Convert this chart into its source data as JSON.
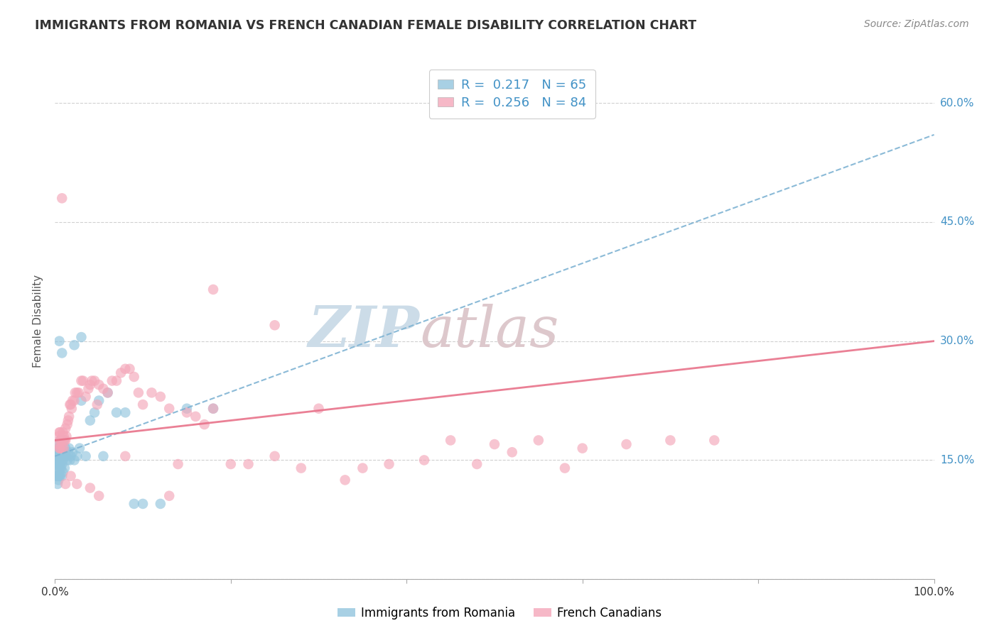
{
  "title": "IMMIGRANTS FROM ROMANIA VS FRENCH CANADIAN FEMALE DISABILITY CORRELATION CHART",
  "source": "Source: ZipAtlas.com",
  "ylabel": "Female Disability",
  "color_blue": "#92c5de",
  "color_pink": "#f4a7b9",
  "line_blue": "#7fb3d3",
  "line_pink": "#e8728a",
  "yticks": [
    0.0,
    0.15,
    0.3,
    0.45,
    0.6
  ],
  "ytick_labels": [
    "",
    "15.0%",
    "30.0%",
    "45.0%",
    "60.0%"
  ],
  "xlim": [
    0.0,
    1.0
  ],
  "ylim": [
    0.0,
    0.65
  ],
  "blue_points_x": [
    0.002,
    0.002,
    0.002,
    0.003,
    0.003,
    0.003,
    0.003,
    0.003,
    0.004,
    0.004,
    0.004,
    0.004,
    0.004,
    0.005,
    0.005,
    0.005,
    0.005,
    0.005,
    0.006,
    0.006,
    0.006,
    0.006,
    0.006,
    0.007,
    0.007,
    0.007,
    0.008,
    0.008,
    0.008,
    0.009,
    0.009,
    0.009,
    0.01,
    0.01,
    0.011,
    0.011,
    0.012,
    0.013,
    0.014,
    0.015,
    0.016,
    0.017,
    0.018,
    0.02,
    0.022,
    0.025,
    0.028,
    0.03,
    0.035,
    0.04,
    0.045,
    0.05,
    0.055,
    0.06,
    0.07,
    0.08,
    0.09,
    0.1,
    0.12,
    0.15,
    0.18,
    0.03,
    0.022,
    0.008,
    0.005
  ],
  "blue_points_y": [
    0.155,
    0.145,
    0.13,
    0.16,
    0.15,
    0.14,
    0.13,
    0.12,
    0.165,
    0.155,
    0.145,
    0.135,
    0.125,
    0.17,
    0.16,
    0.15,
    0.14,
    0.13,
    0.175,
    0.165,
    0.155,
    0.145,
    0.13,
    0.165,
    0.155,
    0.14,
    0.155,
    0.145,
    0.13,
    0.16,
    0.15,
    0.135,
    0.175,
    0.155,
    0.155,
    0.14,
    0.165,
    0.155,
    0.15,
    0.16,
    0.165,
    0.15,
    0.155,
    0.16,
    0.15,
    0.155,
    0.165,
    0.225,
    0.155,
    0.2,
    0.21,
    0.225,
    0.155,
    0.235,
    0.21,
    0.21,
    0.095,
    0.095,
    0.095,
    0.215,
    0.215,
    0.305,
    0.295,
    0.285,
    0.3
  ],
  "pink_points_x": [
    0.003,
    0.004,
    0.005,
    0.005,
    0.006,
    0.006,
    0.006,
    0.007,
    0.008,
    0.008,
    0.009,
    0.01,
    0.01,
    0.011,
    0.012,
    0.012,
    0.013,
    0.014,
    0.015,
    0.016,
    0.017,
    0.018,
    0.019,
    0.02,
    0.022,
    0.023,
    0.025,
    0.027,
    0.03,
    0.032,
    0.035,
    0.038,
    0.04,
    0.042,
    0.045,
    0.048,
    0.05,
    0.055,
    0.06,
    0.065,
    0.07,
    0.075,
    0.08,
    0.085,
    0.09,
    0.095,
    0.1,
    0.11,
    0.12,
    0.13,
    0.14,
    0.15,
    0.16,
    0.17,
    0.18,
    0.2,
    0.22,
    0.25,
    0.28,
    0.3,
    0.33,
    0.35,
    0.38,
    0.42,
    0.45,
    0.48,
    0.5,
    0.52,
    0.55,
    0.58,
    0.6,
    0.65,
    0.7,
    0.75,
    0.18,
    0.25,
    0.13,
    0.08,
    0.05,
    0.04,
    0.025,
    0.018,
    0.012,
    0.008
  ],
  "pink_points_y": [
    0.17,
    0.18,
    0.165,
    0.185,
    0.175,
    0.165,
    0.185,
    0.175,
    0.175,
    0.165,
    0.185,
    0.18,
    0.165,
    0.175,
    0.19,
    0.175,
    0.18,
    0.195,
    0.2,
    0.205,
    0.22,
    0.22,
    0.215,
    0.225,
    0.225,
    0.235,
    0.235,
    0.235,
    0.25,
    0.25,
    0.23,
    0.24,
    0.245,
    0.25,
    0.25,
    0.22,
    0.245,
    0.24,
    0.235,
    0.25,
    0.25,
    0.26,
    0.265,
    0.265,
    0.255,
    0.235,
    0.22,
    0.235,
    0.23,
    0.215,
    0.145,
    0.21,
    0.205,
    0.195,
    0.215,
    0.145,
    0.145,
    0.155,
    0.14,
    0.215,
    0.125,
    0.14,
    0.145,
    0.15,
    0.175,
    0.145,
    0.17,
    0.16,
    0.175,
    0.14,
    0.165,
    0.17,
    0.175,
    0.175,
    0.365,
    0.32,
    0.105,
    0.155,
    0.105,
    0.115,
    0.12,
    0.13,
    0.12,
    0.48
  ],
  "blue_trend_x": [
    0.0,
    1.0
  ],
  "blue_trend_y": [
    0.155,
    0.56
  ],
  "pink_trend_x": [
    0.0,
    1.0
  ],
  "pink_trend_y": [
    0.175,
    0.3
  ],
  "bg_color": "#ffffff",
  "grid_color": "#d0d0d0",
  "title_color": "#333333",
  "source_color": "#888888",
  "watermark_zip_color": "#ccdce8",
  "watermark_atlas_color": "#ddc8cc",
  "axis_label_color": "#4292c6",
  "legend_r1_text": "R =  0.217   N = 65",
  "legend_r2_text": "R =  0.256   N = 84"
}
